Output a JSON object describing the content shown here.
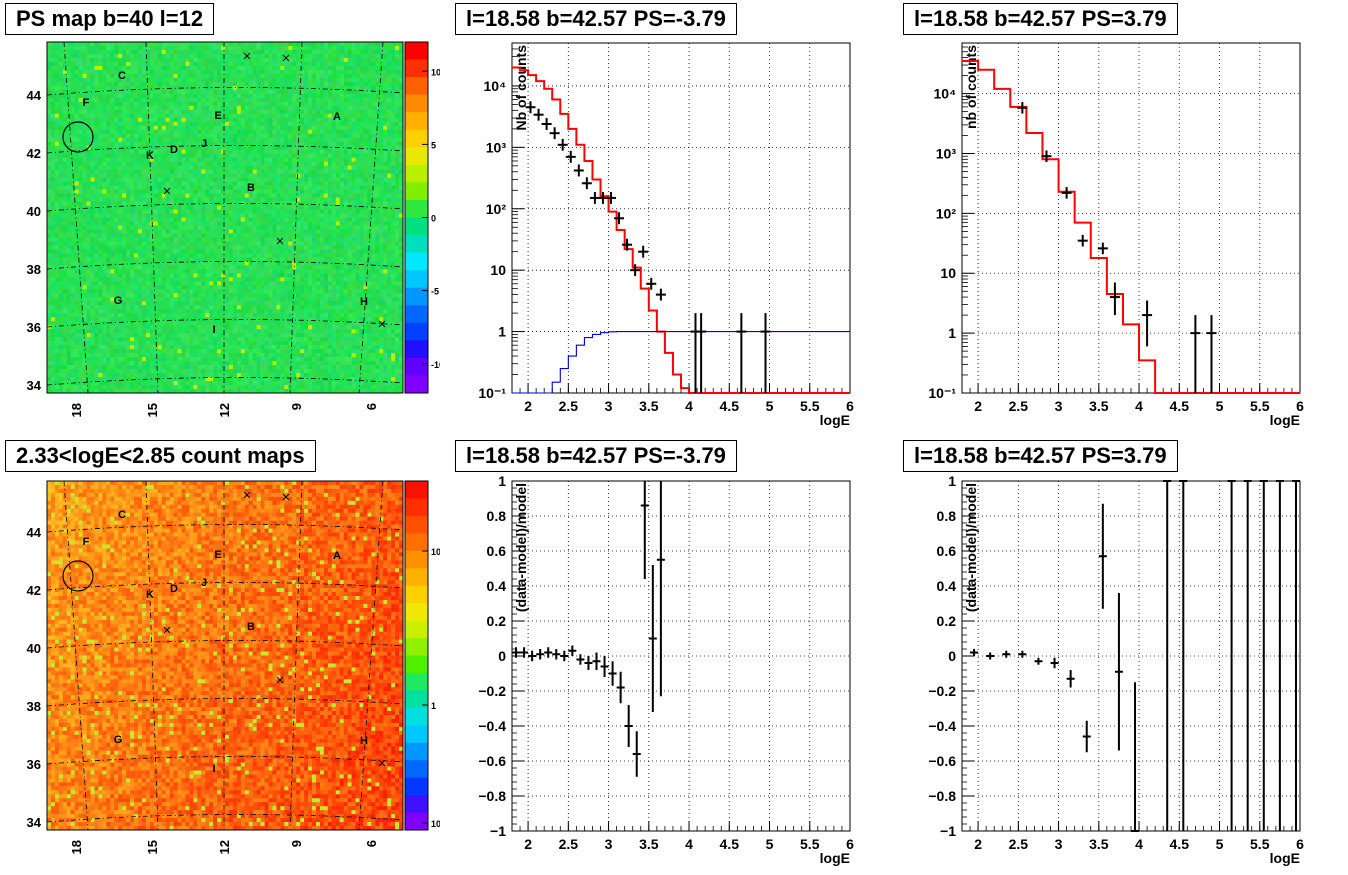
{
  "chart_data": [
    {
      "id": "ps_map",
      "type": "heatmap",
      "title": "PS map b=40 l=12",
      "palette": "ps",
      "xlabel": "",
      "ylabel": "",
      "x_ticks": [
        "18",
        "15",
        "12",
        "9",
        "6"
      ],
      "y_ticks": [
        "34",
        "36",
        "38",
        "40",
        "42",
        "44"
      ],
      "colorbar_ticks": [
        "10",
        "5",
        "0",
        "-5",
        "-10"
      ],
      "zlim": [
        -12,
        12
      ],
      "source_labels": [
        "C",
        "F",
        "E",
        "A",
        "K",
        "D",
        "J",
        "B",
        "G",
        "H",
        "I"
      ]
    },
    {
      "id": "ps_spectrum_neg",
      "type": "line",
      "title": "l=18.58 b=42.57 PS=-3.79",
      "xlabel": "logE",
      "ylabel": "Nb of counts",
      "xlim": [
        1.8,
        6
      ],
      "ylim": [
        0.1,
        50000
      ],
      "yscale": "log",
      "x_ticks": [
        "2",
        "2.5",
        "3",
        "3.5",
        "4",
        "4.5",
        "5",
        "5.5",
        "6"
      ],
      "y_ticks": [
        "10⁻¹",
        "1",
        "10",
        "10²",
        "10³",
        "10⁴"
      ],
      "grid": true,
      "series": [
        {
          "color": "#ff0000",
          "style": "step",
          "edges": [
            1.8,
            1.9,
            2.0,
            2.1,
            2.2,
            2.3,
            2.4,
            2.5,
            2.6,
            2.7,
            2.8,
            2.9,
            3.0,
            3.1,
            3.2,
            3.3,
            3.4,
            3.5,
            3.6,
            3.7,
            3.8,
            3.9,
            4.0,
            4.1,
            4.2,
            6.0
          ],
          "values": [
            20000,
            18000,
            15000,
            12000,
            9000,
            6000,
            3500,
            2000,
            1100,
            600,
            300,
            160,
            90,
            45,
            22,
            11,
            5,
            2.2,
            1.0,
            0.45,
            0.2,
            0.12,
            0.1,
            0.1,
            0.1
          ]
        },
        {
          "color": "#0000cc",
          "style": "step",
          "edges": [
            1.8,
            2.2,
            2.3,
            2.4,
            2.5,
            2.6,
            2.7,
            2.8,
            2.9,
            3.0,
            3.1,
            3.2,
            6.0
          ],
          "values": [
            0.05,
            0.1,
            0.15,
            0.25,
            0.4,
            0.6,
            0.8,
            0.9,
            0.96,
            0.99,
            1.0,
            1.0
          ]
        }
      ],
      "points": [
        {
          "x": 2.03,
          "y": 4500
        },
        {
          "x": 2.13,
          "y": 3400
        },
        {
          "x": 2.23,
          "y": 2400
        },
        {
          "x": 2.33,
          "y": 1700
        },
        {
          "x": 2.43,
          "y": 1100
        },
        {
          "x": 2.53,
          "y": 700
        },
        {
          "x": 2.63,
          "y": 420
        },
        {
          "x": 2.73,
          "y": 260
        },
        {
          "x": 2.83,
          "y": 150
        },
        {
          "x": 2.93,
          "y": 150
        },
        {
          "x": 3.03,
          "y": 150
        },
        {
          "x": 3.13,
          "y": 70
        },
        {
          "x": 3.23,
          "y": 26
        },
        {
          "x": 3.33,
          "y": 10
        },
        {
          "x": 3.43,
          "y": 20
        },
        {
          "x": 3.53,
          "y": 6
        },
        {
          "x": 3.65,
          "y": 4
        },
        {
          "x": 4.08,
          "y": 1,
          "ylo": 0.1,
          "yhi": 2
        },
        {
          "x": 4.15,
          "y": 1,
          "ylo": 0.1,
          "yhi": 2
        },
        {
          "x": 4.65,
          "y": 1,
          "ylo": 0.1,
          "yhi": 2
        },
        {
          "x": 4.95,
          "y": 1,
          "ylo": 0.1,
          "yhi": 2
        }
      ]
    },
    {
      "id": "ps_spectrum_pos",
      "type": "line",
      "title": "l=18.58 b=42.57 PS=3.79",
      "xlabel": "logE",
      "ylabel": "nb of counts",
      "xlim": [
        1.8,
        6
      ],
      "ylim": [
        0.1,
        70000
      ],
      "yscale": "log",
      "x_ticks": [
        "2",
        "2.5",
        "3",
        "3.5",
        "4",
        "4.5",
        "5",
        "5.5",
        "6"
      ],
      "y_ticks": [
        "10⁻¹",
        "1",
        "10",
        "10²",
        "10³",
        "10⁴"
      ],
      "grid": true,
      "series": [
        {
          "color": "#ff0000",
          "style": "step",
          "edges": [
            1.8,
            2.0,
            2.2,
            2.4,
            2.6,
            2.8,
            3.0,
            3.2,
            3.4,
            3.6,
            3.8,
            4.0,
            4.2,
            6.0
          ],
          "values": [
            35000,
            25000,
            12000,
            6000,
            2200,
            800,
            230,
            70,
            18,
            4.5,
            1.4,
            0.35,
            0.1
          ]
        }
      ],
      "points": [
        {
          "x": 2.55,
          "y": 5800
        },
        {
          "x": 2.85,
          "y": 900
        },
        {
          "x": 3.1,
          "y": 220
        },
        {
          "x": 3.3,
          "y": 35
        },
        {
          "x": 3.55,
          "y": 26
        },
        {
          "x": 3.7,
          "y": 4,
          "ylo": 2,
          "yhi": 7
        },
        {
          "x": 4.1,
          "y": 2,
          "ylo": 0.6,
          "yhi": 3.5
        },
        {
          "x": 4.7,
          "y": 1,
          "ylo": 0.1,
          "yhi": 2
        },
        {
          "x": 4.9,
          "y": 1,
          "ylo": 0.1,
          "yhi": 2
        }
      ]
    },
    {
      "id": "count_map",
      "type": "heatmap",
      "title": "2.33<logE<2.85 count maps",
      "palette": "counts",
      "xlabel": "",
      "ylabel": "",
      "x_ticks": [
        "18",
        "15",
        "12",
        "9",
        "6"
      ],
      "y_ticks": [
        "34",
        "36",
        "38",
        "40",
        "42",
        "44"
      ],
      "colorbar_ticks": [
        "10",
        "1",
        "10⁻¹"
      ],
      "source_labels": [
        "C",
        "F",
        "E",
        "A",
        "K",
        "D",
        "J",
        "B",
        "G",
        "H",
        "I"
      ]
    },
    {
      "id": "residuals_neg",
      "type": "scatter",
      "title": "l=18.58 b=42.57 PS=-3.79",
      "xlabel": "logE",
      "ylabel": "(data-model)/model",
      "xlim": [
        1.8,
        6
      ],
      "ylim": [
        -1,
        1
      ],
      "x_ticks": [
        "2",
        "2.5",
        "3",
        "3.5",
        "4",
        "4.5",
        "5",
        "5.5",
        "6"
      ],
      "y_ticks": [
        "−1",
        "−0.8",
        "−0.6",
        "−0.4",
        "−0.2",
        "0",
        "0.2",
        "0.4",
        "0.6",
        "0.8",
        "1"
      ],
      "grid": true,
      "points": [
        {
          "x": 1.85,
          "y": 0.02,
          "err": 0.03
        },
        {
          "x": 1.95,
          "y": 0.02,
          "err": 0.03
        },
        {
          "x": 2.05,
          "y": 0.0,
          "err": 0.03
        },
        {
          "x": 2.15,
          "y": 0.01,
          "err": 0.03
        },
        {
          "x": 2.25,
          "y": 0.02,
          "err": 0.03
        },
        {
          "x": 2.35,
          "y": 0.01,
          "err": 0.03
        },
        {
          "x": 2.45,
          "y": 0.0,
          "err": 0.03
        },
        {
          "x": 2.55,
          "y": 0.03,
          "err": 0.03
        },
        {
          "x": 2.65,
          "y": -0.02,
          "err": 0.03
        },
        {
          "x": 2.75,
          "y": -0.04,
          "err": 0.04
        },
        {
          "x": 2.85,
          "y": -0.03,
          "err": 0.05
        },
        {
          "x": 2.95,
          "y": -0.06,
          "err": 0.06
        },
        {
          "x": 3.05,
          "y": -0.1,
          "err": 0.07
        },
        {
          "x": 3.15,
          "y": -0.18,
          "err": 0.09
        },
        {
          "x": 3.25,
          "y": -0.4,
          "err": 0.12
        },
        {
          "x": 3.35,
          "y": -0.56,
          "err": 0.13
        },
        {
          "x": 3.45,
          "y": 0.86,
          "err": 0.42
        },
        {
          "x": 3.55,
          "y": 0.1,
          "err": 0.42
        },
        {
          "x": 3.65,
          "y": 0.55,
          "err": 0.78
        }
      ]
    },
    {
      "id": "residuals_pos",
      "type": "scatter",
      "title": "l=18.58 b=42.57 PS=3.79",
      "xlabel": "logE",
      "ylabel": "(data-model)/model",
      "xlim": [
        1.8,
        6
      ],
      "ylim": [
        -1,
        1
      ],
      "x_ticks": [
        "2",
        "2.5",
        "3",
        "3.5",
        "4",
        "4.5",
        "5",
        "5.5",
        "6"
      ],
      "y_ticks": [
        "−1",
        "−0.8",
        "−0.6",
        "−0.4",
        "−0.2",
        "0",
        "0.2",
        "0.4",
        "0.6",
        "0.8",
        "1"
      ],
      "grid": true,
      "points": [
        {
          "x": 1.95,
          "y": 0.02,
          "err": 0.02
        },
        {
          "x": 2.15,
          "y": 0.0,
          "err": 0.02
        },
        {
          "x": 2.35,
          "y": 0.01,
          "err": 0.02
        },
        {
          "x": 2.55,
          "y": 0.01,
          "err": 0.02
        },
        {
          "x": 2.75,
          "y": -0.03,
          "err": 0.02
        },
        {
          "x": 2.95,
          "y": -0.04,
          "err": 0.03
        },
        {
          "x": 3.15,
          "y": -0.13,
          "err": 0.05
        },
        {
          "x": 3.35,
          "y": -0.46,
          "err": 0.09
        },
        {
          "x": 3.55,
          "y": 0.57,
          "err": 0.3
        },
        {
          "x": 3.75,
          "y": -0.09,
          "err": 0.45
        },
        {
          "x": 3.95,
          "y": -1.0,
          "err": 0.85
        },
        {
          "x": 4.35,
          "y": 1.0,
          "err": 2
        },
        {
          "x": 4.55,
          "y": 1.0,
          "err": 2
        },
        {
          "x": 5.15,
          "y": 1.0,
          "err": 2
        },
        {
          "x": 5.35,
          "y": 1.0,
          "err": 2
        },
        {
          "x": 5.55,
          "y": 1.0,
          "err": 2
        },
        {
          "x": 5.75,
          "y": 1.0,
          "err": 2
        },
        {
          "x": 5.95,
          "y": 1.0,
          "err": 2
        }
      ]
    }
  ]
}
